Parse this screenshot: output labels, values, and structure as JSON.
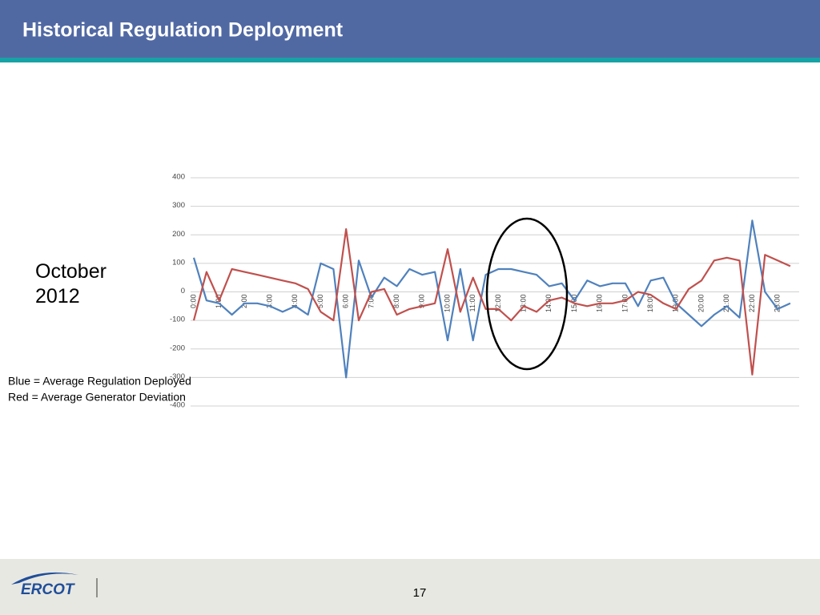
{
  "chart_data": {
    "type": "line",
    "title": "Historical Regulation Deployment",
    "subtitle": "October 2012",
    "annotations": [
      "Blue = Average Regulation Deployed",
      "Red = Average Generator Deviation"
    ],
    "page_number": "17",
    "logo": "ERCOT",
    "categories": [
      "0:00",
      null,
      "1:00",
      null,
      "2:00",
      null,
      "3:00",
      null,
      "4:00",
      null,
      "5:00",
      null,
      "6:00",
      null,
      "7:00",
      null,
      "8:00",
      null,
      "9:00",
      null,
      "10:00",
      null,
      "11:00",
      null,
      "12:00",
      null,
      "13:00",
      null,
      "14:00",
      null,
      "15:00",
      null,
      "16:00",
      null,
      "17:00",
      null,
      "18:00",
      null,
      "19:00",
      null,
      "20:00",
      null,
      "21:00",
      null,
      "22:00",
      null,
      "23:00",
      null
    ],
    "series": [
      {
        "color": "#4f81bd",
        "values": [
          120,
          -30,
          -40,
          -80,
          -40,
          -40,
          -50,
          -70,
          -50,
          -80,
          100,
          80,
          -300,
          110,
          -20,
          50,
          20,
          80,
          60,
          70,
          -170,
          80,
          -170,
          60,
          80,
          80,
          70,
          60,
          20,
          30,
          -30,
          40,
          20,
          30,
          30,
          -50,
          40,
          50,
          -40,
          -80,
          -120,
          -80,
          -50,
          -90,
          250,
          0,
          -60,
          -40
        ]
      },
      {
        "color": "#c0504d",
        "values": [
          -100,
          70,
          -30,
          80,
          70,
          60,
          50,
          40,
          30,
          10,
          -70,
          -100,
          220,
          -100,
          0,
          10,
          -80,
          -60,
          -50,
          -40,
          150,
          -70,
          50,
          -60,
          -60,
          -100,
          -50,
          -70,
          -30,
          -20,
          -40,
          -50,
          -40,
          -40,
          -30,
          0,
          -10,
          -40,
          -60,
          10,
          40,
          110,
          120,
          110,
          -290,
          130,
          110,
          90
        ]
      }
    ],
    "ylim": [
      -400,
      400
    ],
    "yticks": [
      -400,
      -300,
      -200,
      -100,
      0,
      100,
      200,
      300,
      400
    ],
    "grid": true
  }
}
